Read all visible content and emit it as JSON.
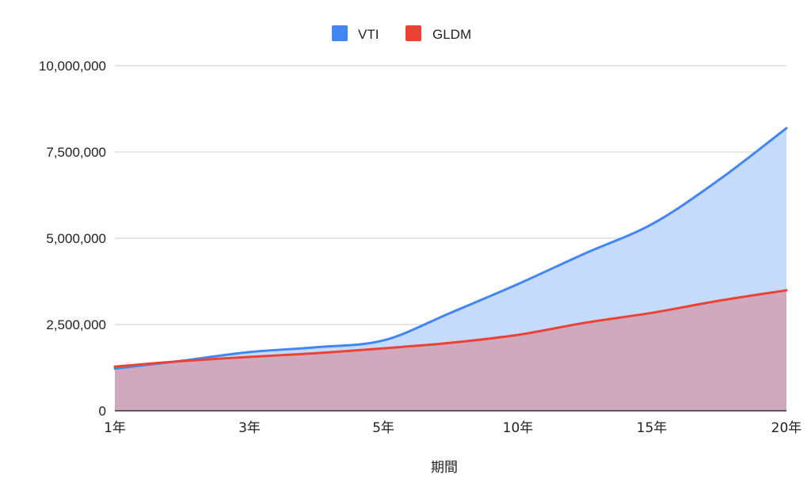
{
  "chart_data": {
    "type": "area",
    "title": "",
    "xlabel": "期間",
    "ylabel": "",
    "ylim": [
      0,
      10000000
    ],
    "yticks": [
      0,
      2500000,
      5000000,
      7500000,
      10000000
    ],
    "ytick_labels": [
      "0",
      "2,500,000",
      "5,000,000",
      "7,500,000",
      "10,000,000"
    ],
    "grid": true,
    "legend_position": "top",
    "categories": [
      "1年",
      "",
      "3年",
      "",
      "5年",
      "",
      "10年",
      "",
      "15年",
      "",
      "20年"
    ],
    "xtick_labels": [
      "1年",
      "3年",
      "5年",
      "10年",
      "15年",
      "20年"
    ],
    "series": [
      {
        "name": "VTI",
        "color": "#4285f4",
        "fill": "#c6dafc",
        "values": [
          1220000,
          1450000,
          1700000,
          1840000,
          2040000,
          2840000,
          3670000,
          4560000,
          5410000,
          6700000,
          8190000
        ]
      },
      {
        "name": "GLDM",
        "color": "#ea4335",
        "fill": "#d0a9bf",
        "values": [
          1280000,
          1440000,
          1560000,
          1670000,
          1810000,
          1970000,
          2200000,
          2550000,
          2840000,
          3190000,
          3490000
        ]
      }
    ]
  },
  "legend": {
    "items": [
      {
        "label": "VTI",
        "color": "#4285f4"
      },
      {
        "label": "GLDM",
        "color": "#ea4335"
      }
    ]
  },
  "axes": {
    "x_title": "期間",
    "y_labels": [
      "10,000,000",
      "7,500,000",
      "5,000,000",
      "2,500,000",
      "0"
    ],
    "x_labels": [
      "1年",
      "3年",
      "5年",
      "10年",
      "15年",
      "20年"
    ]
  },
  "colors": {
    "gridline": "#cccccc",
    "baseline": "#333333",
    "overlap_fill": "#d0a9bf"
  }
}
